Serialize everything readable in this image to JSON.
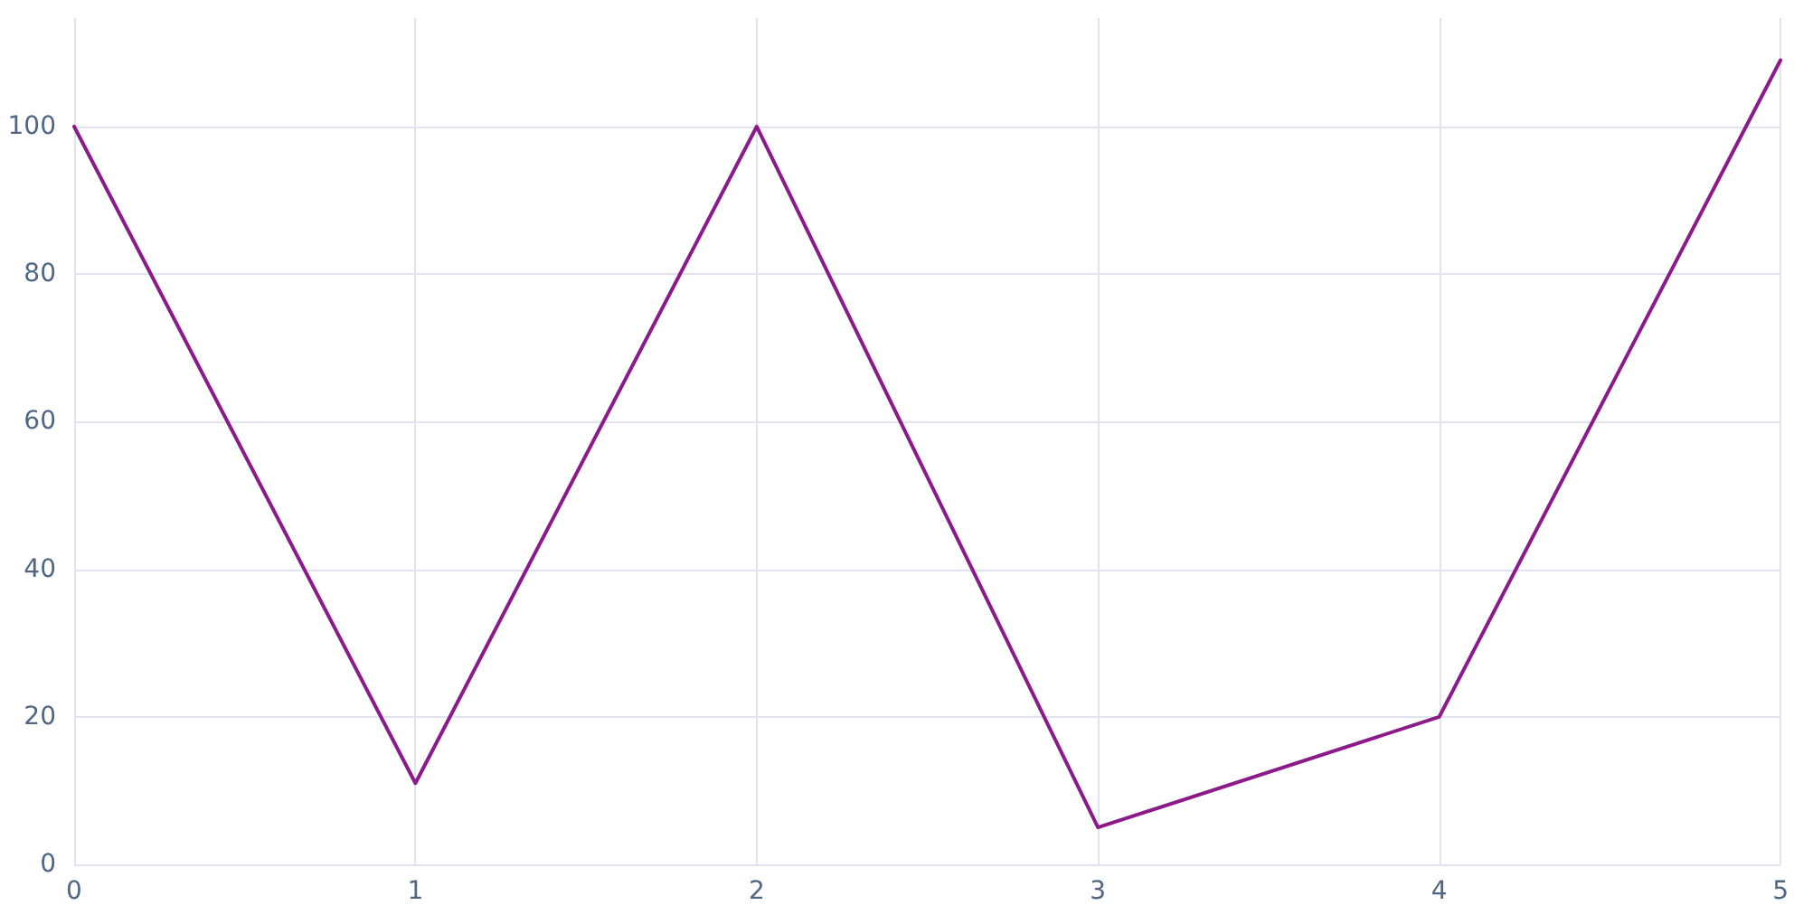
{
  "chart_data": {
    "type": "line",
    "x": [
      0,
      1,
      2,
      3,
      4,
      5
    ],
    "values": [
      100,
      11,
      100,
      5,
      20,
      109
    ],
    "color": "#8b1a8b",
    "xlim": [
      0,
      5
    ],
    "xticks": [
      0,
      1,
      2,
      3,
      4,
      5
    ],
    "ylim": [
      0,
      114.7
    ],
    "yticks": [
      0,
      20,
      40,
      60,
      80,
      100
    ],
    "grid": true,
    "marker": "none",
    "line_style": "solid"
  }
}
